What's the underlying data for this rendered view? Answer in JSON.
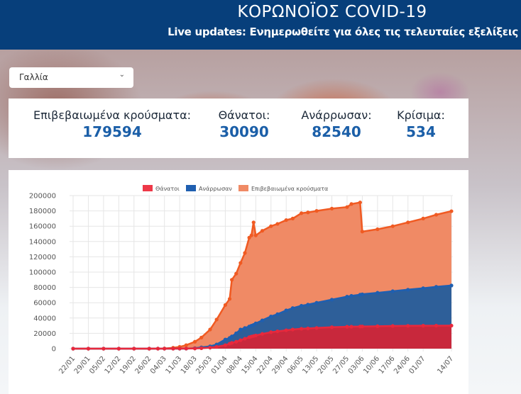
{
  "header": {
    "title": "ΚΟΡΩΝΟΪΟΣ COVID-19",
    "subtitle": "Live updates: Ενημερωθείτε για όλες τις τελευταίες εξελίξεις"
  },
  "country_select": {
    "value": "Γαλλία",
    "icon": "chevron-down-icon"
  },
  "stats": [
    {
      "label": "Επιβεβαιωμένα κρούσματα:",
      "value": "179594"
    },
    {
      "label": "Θάνατοι:",
      "value": "30090"
    },
    {
      "label": "Ανάρρωσαν:",
      "value": "82540"
    },
    {
      "label": "Κρίσιμα:",
      "value": "534"
    }
  ],
  "colors": {
    "deaths": "#e8283c",
    "recovered": "#1f5fb0",
    "confirmed": "#f05a22",
    "header": "#073f7b"
  },
  "chart_data": {
    "type": "area",
    "ylim": [
      0,
      200000
    ],
    "yticks": [
      0,
      20000,
      40000,
      60000,
      80000,
      100000,
      120000,
      140000,
      160000,
      180000,
      200000
    ],
    "xticks": [
      "22/01",
      "29/01",
      "05/02",
      "12/02",
      "19/02",
      "26/02",
      "04/03",
      "11/03",
      "18/03",
      "25/03",
      "01/04",
      "08/04",
      "15/04",
      "22/04",
      "29/04",
      "06/05",
      "13/05",
      "20/05",
      "27/05",
      "03/06",
      "10/06",
      "17/06",
      "24/06",
      "01/07",
      "14/07"
    ],
    "legend_position": "top",
    "grid": true,
    "x": [
      "22/01",
      "29/01",
      "05/02",
      "12/02",
      "19/02",
      "26/02",
      "01/03",
      "04/03",
      "08/03",
      "11/03",
      "14/03",
      "18/03",
      "21/03",
      "25/03",
      "28/03",
      "01/04",
      "03/04",
      "04/04",
      "06/04",
      "08/04",
      "10/04",
      "12/04",
      "13/04",
      "14/04",
      "15/04",
      "18/04",
      "22/04",
      "25/04",
      "29/04",
      "02/05",
      "06/05",
      "09/05",
      "13/05",
      "20/05",
      "27/05",
      "29/05",
      "02/06",
      "03/06",
      "10/06",
      "17/06",
      "24/06",
      "01/07",
      "07/07",
      "14/07"
    ],
    "series": [
      {
        "name": "Θάνατοι",
        "values": [
          0,
          0,
          0,
          0,
          0,
          0,
          2,
          4,
          20,
          50,
          90,
          250,
          560,
          1300,
          2300,
          4500,
          6500,
          7500,
          9000,
          11000,
          13000,
          15000,
          15800,
          16500,
          17200,
          19300,
          21500,
          22600,
          24000,
          25000,
          26000,
          26400,
          27000,
          28000,
          28600,
          28700,
          28900,
          29000,
          29300,
          29600,
          29800,
          30000,
          30040,
          30090
        ]
      },
      {
        "name": "Ανάρρωσαν",
        "values": [
          0,
          0,
          0,
          0,
          0,
          0,
          12,
          12,
          12,
          12,
          20,
          600,
          1600,
          3000,
          5500,
          12000,
          14000,
          16000,
          20000,
          25000,
          27000,
          29000,
          30000,
          31000,
          33000,
          37000,
          42000,
          45000,
          50000,
          53000,
          56000,
          57500,
          60000,
          64000,
          68000,
          69000,
          70500,
          71000,
          73000,
          75000,
          77000,
          79000,
          80800,
          82540
        ]
      },
      {
        "name": "Επιβεβαιωμένα κρούσματα",
        "values": [
          3,
          6,
          6,
          11,
          12,
          14,
          130,
          300,
          1200,
          2300,
          4500,
          9000,
          14500,
          25000,
          38000,
          57000,
          65000,
          90000,
          98000,
          112000,
          125000,
          145000,
          148000,
          165000,
          148000,
          154000,
          160000,
          163000,
          168000,
          170000,
          177000,
          178000,
          180000,
          183000,
          185000,
          189000,
          191000,
          153000,
          156000,
          160000,
          165000,
          170000,
          175000,
          179594
        ]
      }
    ]
  }
}
